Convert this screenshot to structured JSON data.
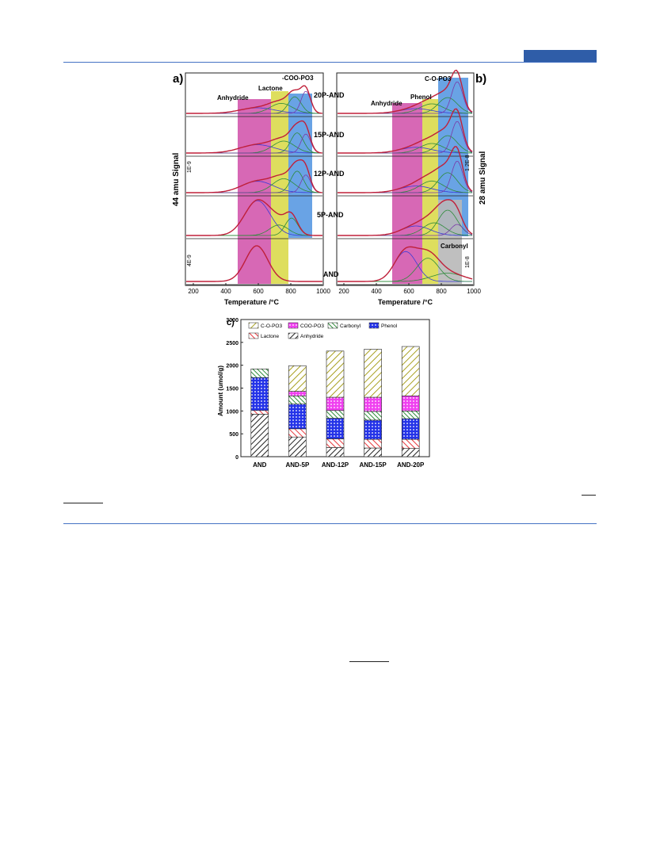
{
  "page": {
    "header_color": "#2f5da8",
    "rule_color": "#4472c4"
  },
  "figure": {
    "panel_a": {
      "letter": "a)",
      "ylabel": "44 amu Signal",
      "xlabel": "Temperature /°C",
      "xticks": [
        "200",
        "400",
        "600",
        "800",
        "1000"
      ],
      "scale_top": "1E-9",
      "scale_bottom": "4E-9",
      "samples": [
        "20P-AND",
        "15P-AND",
        "12P-AND",
        "5P-AND",
        "AND"
      ],
      "bands": [
        {
          "label": "Anhydride",
          "color": "#d04da8",
          "from": 480,
          "to": 680
        },
        {
          "label": "Lactone",
          "color": "#d8d842",
          "from": 680,
          "to": 790
        },
        {
          "label": "-COO-PO3",
          "color": "#4f93e0",
          "from": 790,
          "to": 930
        }
      ]
    },
    "panel_b": {
      "letter": "b)",
      "ylabel": "28 amu Signal",
      "xlabel": "Temperature /°C",
      "xticks": [
        "200",
        "400",
        "600",
        "800",
        "1000"
      ],
      "scale_top": "1.2E-8",
      "scale_bottom": "1E-8",
      "bands": [
        {
          "label": "Anhydride",
          "color": "#d04da8",
          "from": 500,
          "to": 670
        },
        {
          "label": "Phenol",
          "color": "#d8d842",
          "from": 670,
          "to": 780
        },
        {
          "label": "C-O-PO3",
          "color": "#4f93e0",
          "from": 780,
          "to": 950
        },
        {
          "label": "Carbonyl",
          "color": "#b8b8b8",
          "from": 780,
          "to": 910
        }
      ]
    },
    "panel_c": {
      "letter": "c)",
      "chart_data": {
        "type": "bar",
        "ylabel": "Amount (umol/g)",
        "ylim": [
          0,
          3000
        ],
        "yticks": [
          "0",
          "500",
          "1000",
          "1500",
          "2000",
          "2500",
          "3000"
        ],
        "categories": [
          "AND",
          "AND-5P",
          "AND-12P",
          "AND-15P",
          "AND-20P"
        ],
        "series": [
          {
            "name": "Anhydride",
            "color": "#222222",
            "values": [
              930,
              430,
              200,
              190,
              180
            ]
          },
          {
            "name": "Lactone",
            "color": "#e8383d",
            "values": [
              80,
              180,
              190,
              190,
              200
            ]
          },
          {
            "name": "Phenol",
            "color": "#2433e8",
            "values": [
              720,
              540,
              450,
              420,
              450
            ]
          },
          {
            "name": "Carbonyl",
            "color": "#2e8b3a",
            "values": [
              190,
              180,
              170,
              190,
              170
            ]
          },
          {
            "name": "COO-PO3",
            "color": "#f040f0",
            "values": [
              0,
              100,
              290,
              310,
              330
            ]
          },
          {
            "name": "C-O-PO3",
            "color": "#a8a020",
            "values": [
              0,
              560,
              1010,
              1050,
              1080
            ]
          }
        ],
        "legend": [
          "C-O-PO3",
          "COO-PO3",
          "Carbonyl",
          "Phenol",
          "Lactone",
          "Anhydride"
        ]
      }
    }
  }
}
